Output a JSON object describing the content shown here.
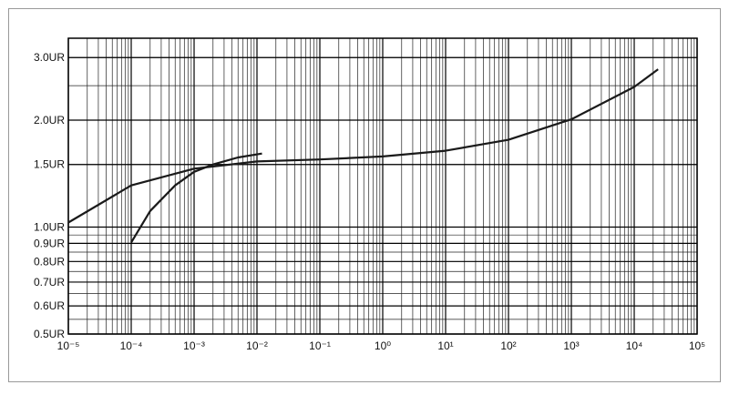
{
  "chart_data": {
    "type": "line",
    "xlim": [
      1e-05,
      100000
    ],
    "xticks": [
      {
        "value": 1e-05,
        "label": "10⁻⁵"
      },
      {
        "value": 0.0001,
        "label": "10⁻⁴"
      },
      {
        "value": 0.001,
        "label": "10⁻³"
      },
      {
        "value": 0.01,
        "label": "10⁻²"
      },
      {
        "value": 0.1,
        "label": "10⁻¹"
      },
      {
        "value": 1,
        "label": "10⁰"
      },
      {
        "value": 10,
        "label": "10¹"
      },
      {
        "value": 100,
        "label": "10²"
      },
      {
        "value": 1000,
        "label": "10³"
      },
      {
        "value": 10000,
        "label": "10⁴"
      },
      {
        "value": 100000,
        "label": "10⁵"
      }
    ],
    "ylim": [
      0.5,
      3.4
    ],
    "yticks": [
      {
        "value": 0.5,
        "label": "0.5UR"
      },
      {
        "value": 0.6,
        "label": "0.6UR"
      },
      {
        "value": 0.7,
        "label": "0.7UR"
      },
      {
        "value": 0.8,
        "label": "0.8UR"
      },
      {
        "value": 0.9,
        "label": "0.9UR"
      },
      {
        "value": 1.0,
        "label": "1.0UR"
      },
      {
        "value": 1.5,
        "label": "1.5UR"
      },
      {
        "value": 2.0,
        "label": "2.0UR"
      },
      {
        "value": 3.0,
        "label": "3.0UR"
      }
    ],
    "log_x": true,
    "log_y": true,
    "grid": true,
    "series": [
      {
        "color": "#1a1a1a",
        "x": [
          1e-05,
          0.0001,
          0.001,
          0.01,
          0.1,
          1,
          10,
          100,
          1000,
          10000,
          24000
        ],
        "values": [
          1.03,
          1.31,
          1.46,
          1.53,
          1.55,
          1.58,
          1.64,
          1.76,
          2.01,
          2.48,
          2.78
        ]
      },
      {
        "color": "#1a1a1a",
        "x": [
          0.0001,
          0.0002,
          0.0005,
          0.001,
          0.002,
          0.005,
          0.012
        ],
        "values": [
          0.905,
          1.11,
          1.31,
          1.43,
          1.5,
          1.57,
          1.61
        ]
      }
    ]
  }
}
